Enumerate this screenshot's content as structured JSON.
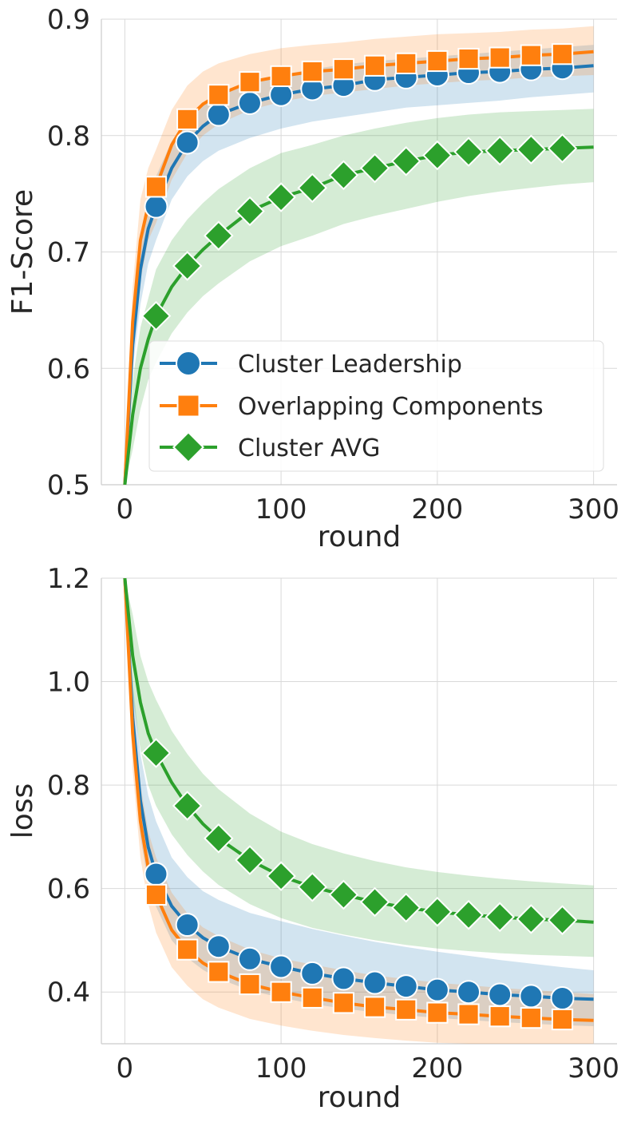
{
  "chart_data": [
    {
      "type": "line",
      "xlabel": "round",
      "ylabel": "F1-Score",
      "xlim": [
        -15,
        315
      ],
      "ylim": [
        0.5,
        0.9
      ],
      "xticks": [
        0,
        100,
        200,
        300
      ],
      "yticks": [
        0.5,
        0.6,
        0.7,
        0.8,
        0.9
      ],
      "xtick_labels": [
        "0",
        "100",
        "200",
        "300"
      ],
      "ytick_labels": [
        "0.5",
        "0.6",
        "0.7",
        "0.8",
        "0.9"
      ],
      "grid": true,
      "legend_position": "lower-right",
      "series": [
        {
          "name": "Cluster Leadership",
          "color": "#1f77b4",
          "marker": "circle",
          "x": [
            20,
            40,
            60,
            80,
            100,
            120,
            140,
            160,
            180,
            200,
            220,
            240,
            260,
            280
          ],
          "values": [
            0.739,
            0.794,
            0.818,
            0.828,
            0.835,
            0.84,
            0.843,
            0.848,
            0.85,
            0.852,
            0.854,
            0.855,
            0.857,
            0.858
          ],
          "line": {
            "x": [
              0,
              5,
              10,
              15,
              20,
              30,
              40,
              50,
              60,
              80,
              100,
              120,
              140,
              160,
              180,
              200,
              220,
              240,
              260,
              280,
              300
            ],
            "y": [
              0.5,
              0.62,
              0.685,
              0.72,
              0.739,
              0.772,
              0.794,
              0.808,
              0.818,
              0.828,
              0.835,
              0.84,
              0.843,
              0.848,
              0.85,
              0.852,
              0.854,
              0.855,
              0.857,
              0.858,
              0.86
            ],
            "lower": [
              0.5,
              0.6,
              0.655,
              0.69,
              0.71,
              0.745,
              0.765,
              0.778,
              0.787,
              0.798,
              0.806,
              0.812,
              0.816,
              0.82,
              0.824,
              0.826,
              0.828,
              0.83,
              0.833,
              0.835,
              0.837
            ],
            "upper": [
              0.5,
              0.64,
              0.71,
              0.745,
              0.765,
              0.795,
              0.815,
              0.826,
              0.834,
              0.845,
              0.852,
              0.857,
              0.861,
              0.864,
              0.866,
              0.868,
              0.87,
              0.872,
              0.874,
              0.876,
              0.878
            ]
          }
        },
        {
          "name": "Overlapping Components",
          "color": "#ff7f0e",
          "marker": "square",
          "x": [
            20,
            40,
            60,
            80,
            100,
            120,
            140,
            160,
            180,
            200,
            220,
            240,
            260,
            280
          ],
          "values": [
            0.756,
            0.814,
            0.835,
            0.846,
            0.851,
            0.855,
            0.857,
            0.86,
            0.862,
            0.864,
            0.866,
            0.867,
            0.869,
            0.87
          ],
          "line": {
            "x": [
              0,
              5,
              10,
              15,
              20,
              30,
              40,
              50,
              60,
              80,
              100,
              120,
              140,
              160,
              180,
              200,
              220,
              240,
              260,
              280,
              300
            ],
            "y": [
              0.5,
              0.64,
              0.71,
              0.74,
              0.756,
              0.792,
              0.814,
              0.827,
              0.835,
              0.846,
              0.851,
              0.855,
              0.857,
              0.86,
              0.862,
              0.864,
              0.866,
              0.867,
              0.869,
              0.87,
              0.872
            ],
            "lower": [
              0.5,
              0.61,
              0.675,
              0.71,
              0.725,
              0.762,
              0.785,
              0.8,
              0.81,
              0.822,
              0.829,
              0.834,
              0.837,
              0.84,
              0.843,
              0.845,
              0.847,
              0.848,
              0.85,
              0.851,
              0.852
            ],
            "upper": [
              0.5,
              0.67,
              0.745,
              0.772,
              0.788,
              0.822,
              0.843,
              0.855,
              0.862,
              0.87,
              0.875,
              0.878,
              0.88,
              0.883,
              0.885,
              0.887,
              0.888,
              0.889,
              0.891,
              0.892,
              0.894
            ]
          }
        },
        {
          "name": "Cluster AVG",
          "color": "#2ca02c",
          "marker": "diamond",
          "x": [
            20,
            40,
            60,
            80,
            100,
            120,
            140,
            160,
            180,
            200,
            220,
            240,
            260,
            280
          ],
          "values": [
            0.645,
            0.688,
            0.714,
            0.735,
            0.747,
            0.755,
            0.766,
            0.772,
            0.778,
            0.783,
            0.786,
            0.787,
            0.788,
            0.789
          ],
          "line": {
            "x": [
              0,
              5,
              10,
              15,
              20,
              30,
              40,
              50,
              60,
              80,
              100,
              120,
              140,
              160,
              180,
              200,
              220,
              240,
              260,
              280,
              300
            ],
            "y": [
              0.5,
              0.56,
              0.6,
              0.625,
              0.645,
              0.67,
              0.688,
              0.702,
              0.714,
              0.735,
              0.747,
              0.755,
              0.766,
              0.772,
              0.778,
              0.783,
              0.786,
              0.787,
              0.788,
              0.789,
              0.79
            ],
            "lower": [
              0.5,
              0.53,
              0.565,
              0.59,
              0.605,
              0.63,
              0.648,
              0.662,
              0.673,
              0.692,
              0.705,
              0.714,
              0.724,
              0.731,
              0.737,
              0.743,
              0.748,
              0.752,
              0.755,
              0.758,
              0.76
            ],
            "upper": [
              0.5,
              0.59,
              0.635,
              0.66,
              0.685,
              0.71,
              0.728,
              0.742,
              0.754,
              0.772,
              0.785,
              0.792,
              0.8,
              0.806,
              0.811,
              0.815,
              0.818,
              0.82,
              0.821,
              0.822,
              0.823
            ]
          }
        }
      ]
    },
    {
      "type": "line",
      "xlabel": "round",
      "ylabel": "loss",
      "xlim": [
        -15,
        315
      ],
      "ylim": [
        0.3,
        1.2
      ],
      "xticks": [
        0,
        100,
        200,
        300
      ],
      "yticks": [
        0.4,
        0.6,
        0.8,
        1.0,
        1.2
      ],
      "xtick_labels": [
        "0",
        "100",
        "200",
        "300"
      ],
      "ytick_labels": [
        "0.4",
        "0.6",
        "0.8",
        "1.0",
        "1.2"
      ],
      "grid": true,
      "series": [
        {
          "color": "#1f77b4",
          "marker": "circle",
          "x": [
            20,
            40,
            60,
            80,
            100,
            120,
            140,
            160,
            180,
            200,
            220,
            240,
            260,
            280
          ],
          "values": [
            0.628,
            0.53,
            0.488,
            0.464,
            0.449,
            0.436,
            0.426,
            0.418,
            0.411,
            0.404,
            0.4,
            0.395,
            0.392,
            0.388
          ],
          "line": {
            "x": [
              0,
              5,
              10,
              15,
              20,
              30,
              40,
              50,
              60,
              80,
              100,
              120,
              140,
              160,
              180,
              200,
              220,
              240,
              260,
              280,
              300
            ],
            "y": [
              1.2,
              0.93,
              0.77,
              0.68,
              0.628,
              0.566,
              0.53,
              0.505,
              0.488,
              0.464,
              0.449,
              0.436,
              0.426,
              0.418,
              0.411,
              0.404,
              0.4,
              0.395,
              0.392,
              0.388,
              0.386
            ],
            "lower": [
              1.2,
              0.86,
              0.7,
              0.61,
              0.565,
              0.5,
              0.466,
              0.443,
              0.426,
              0.403,
              0.389,
              0.377,
              0.368,
              0.361,
              0.355,
              0.35,
              0.346,
              0.342,
              0.339,
              0.336,
              0.334
            ],
            "upper": [
              1.2,
              1.0,
              0.86,
              0.78,
              0.73,
              0.66,
              0.622,
              0.595,
              0.578,
              0.553,
              0.537,
              0.522,
              0.509,
              0.497,
              0.487,
              0.478,
              0.47,
              0.462,
              0.455,
              0.448,
              0.442
            ]
          }
        },
        {
          "color": "#ff7f0e",
          "marker": "square",
          "x": [
            20,
            40,
            60,
            80,
            100,
            120,
            140,
            160,
            180,
            200,
            220,
            240,
            260,
            280
          ],
          "values": [
            0.588,
            0.482,
            0.439,
            0.415,
            0.4,
            0.389,
            0.379,
            0.371,
            0.366,
            0.36,
            0.357,
            0.353,
            0.35,
            0.347
          ],
          "line": {
            "x": [
              0,
              5,
              10,
              15,
              20,
              30,
              40,
              50,
              60,
              80,
              100,
              120,
              140,
              160,
              180,
              200,
              220,
              240,
              260,
              280,
              300
            ],
            "y": [
              1.2,
              0.9,
              0.73,
              0.64,
              0.588,
              0.52,
              0.482,
              0.456,
              0.439,
              0.415,
              0.4,
              0.389,
              0.379,
              0.371,
              0.366,
              0.36,
              0.357,
              0.353,
              0.35,
              0.347,
              0.345
            ],
            "lower": [
              1.2,
              0.83,
              0.66,
              0.57,
              0.515,
              0.448,
              0.412,
              0.386,
              0.37,
              0.348,
              0.335,
              0.325,
              0.317,
              0.311,
              0.306,
              0.302,
              0.3,
              0.3,
              0.3,
              0.3,
              0.3
            ],
            "upper": [
              1.2,
              0.97,
              0.8,
              0.71,
              0.66,
              0.592,
              0.552,
              0.525,
              0.508,
              0.482,
              0.465,
              0.453,
              0.442,
              0.432,
              0.425,
              0.418,
              0.413,
              0.408,
              0.404,
              0.4,
              0.396
            ]
          }
        },
        {
          "color": "#2ca02c",
          "marker": "diamond",
          "x": [
            20,
            40,
            60,
            80,
            100,
            120,
            140,
            160,
            180,
            200,
            220,
            240,
            260,
            280
          ],
          "values": [
            0.862,
            0.76,
            0.697,
            0.655,
            0.624,
            0.603,
            0.588,
            0.574,
            0.563,
            0.555,
            0.549,
            0.545,
            0.541,
            0.539
          ],
          "line": {
            "x": [
              0,
              5,
              10,
              15,
              20,
              30,
              40,
              50,
              60,
              80,
              100,
              120,
              140,
              160,
              180,
              200,
              220,
              240,
              260,
              280,
              300
            ],
            "y": [
              1.2,
              1.05,
              0.96,
              0.9,
              0.862,
              0.805,
              0.76,
              0.725,
              0.697,
              0.655,
              0.624,
              0.603,
              0.588,
              0.574,
              0.563,
              0.555,
              0.549,
              0.545,
              0.541,
              0.539,
              0.535
            ],
            "lower": [
              1.2,
              0.97,
              0.87,
              0.8,
              0.76,
              0.705,
              0.665,
              0.633,
              0.607,
              0.57,
              0.543,
              0.524,
              0.511,
              0.5,
              0.491,
              0.484,
              0.479,
              0.475,
              0.472,
              0.47,
              0.468
            ],
            "upper": [
              1.2,
              1.13,
              1.05,
              1.0,
              0.965,
              0.905,
              0.86,
              0.822,
              0.792,
              0.745,
              0.71,
              0.686,
              0.668,
              0.653,
              0.641,
              0.632,
              0.625,
              0.619,
              0.614,
              0.61,
              0.606
            ]
          }
        }
      ]
    }
  ]
}
